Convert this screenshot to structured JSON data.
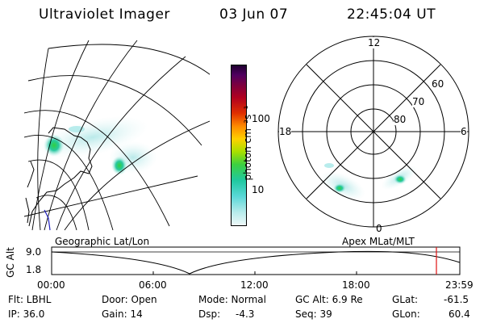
{
  "header": {
    "title": "Ultraviolet Imager",
    "date": "03 Jun 07",
    "time": "22:45:04 UT"
  },
  "colorbar": {
    "label": "photon cm⁻²s⁻¹",
    "ticks": [
      "100",
      "10"
    ]
  },
  "polar_plot": {
    "mlt_labels": [
      "12",
      "18",
      "6",
      "0"
    ],
    "lat_labels": [
      "60",
      "70",
      "80"
    ]
  },
  "timeline": {
    "y_axis_label": "GC Alt",
    "y_ticks": [
      "9.0",
      "1.8"
    ],
    "left_title": "Geographic Lat/Lon",
    "right_title": "Apex  MLat/MLT",
    "x_ticks": [
      "00:00",
      "06:00",
      "12:00",
      "18:00",
      "23:59"
    ]
  },
  "status": {
    "filter": "Flt: LBHL",
    "ip": "IP: 36.0",
    "door": "Door: Open",
    "gain": "Gain: 14",
    "mode": "Mode: Normal",
    "dsp_label": "Dsp:",
    "dsp_value": "-4.3",
    "gc_alt": "GC Alt: 6.9 Re",
    "seq": "Seq: 39",
    "glat_label": "GLat:",
    "glat_value": "-61.5",
    "glon_label": "GLon:",
    "glon_value": "60.4"
  }
}
